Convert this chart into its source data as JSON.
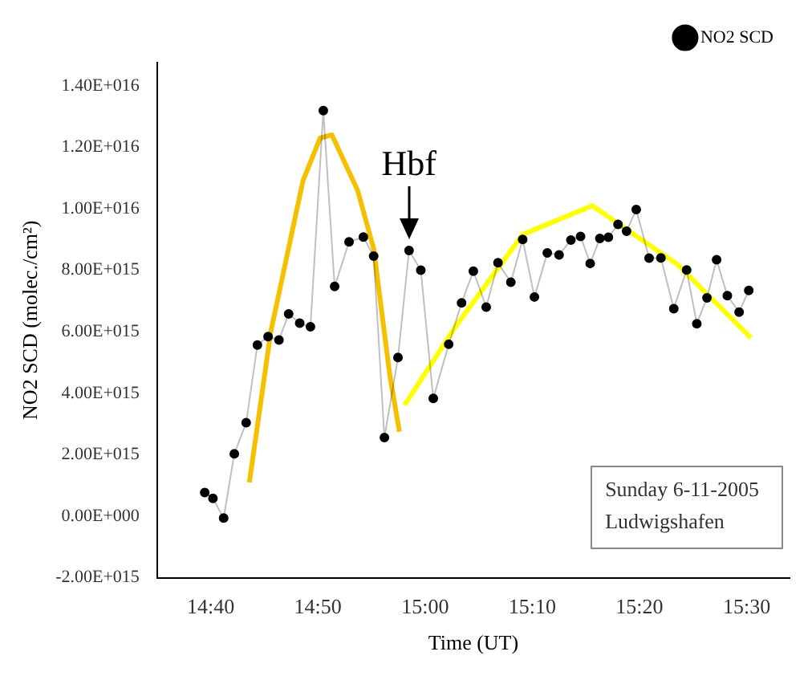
{
  "chart_data": {
    "type": "line",
    "xlabel": "Time (UT)",
    "ylabel": "NO2 SCD (molec./cm²)",
    "xlim": [
      14.5833,
      15.5667
    ],
    "ylim": [
      -2000000000000000.0,
      1.475e+16
    ],
    "xticks": [
      {
        "value": 14.6667,
        "label": "14:40"
      },
      {
        "value": 14.8333,
        "label": "14:50"
      },
      {
        "value": 15,
        "label": "15:00"
      },
      {
        "value": 15.1667,
        "label": "15:10"
      },
      {
        "value": 15.3333,
        "label": "15:20"
      },
      {
        "value": 15.5,
        "label": "15:30"
      }
    ],
    "yticks": [
      {
        "value": -2000000000000000.0,
        "label": "-2.00E+015"
      },
      {
        "value": 0,
        "label": "0.00E+000"
      },
      {
        "value": 2000000000000000.0,
        "label": "2.00E+015"
      },
      {
        "value": 4000000000000000.0,
        "label": "4.00E+015"
      },
      {
        "value": 6000000000000000.0,
        "label": "6.00E+015"
      },
      {
        "value": 8000000000000000.0,
        "label": "8.00E+015"
      },
      {
        "value": 1e+16,
        "label": "1.00E+016"
      },
      {
        "value": 1.2e+16,
        "label": "1.20E+016"
      },
      {
        "value": 1.4e+16,
        "label": "1.40E+016"
      }
    ],
    "grid": false,
    "legend": "top right",
    "marker": "circle",
    "annotations": [
      {
        "text": "Hbf",
        "x": 14.975,
        "y": 8640000000000000.0
      },
      "Sunday 6-11-2005",
      "Ludwigshafen"
    ],
    "series": [
      {
        "name": "NO2 SCD",
        "color": "#000000",
        "x": [
          14.6573,
          14.67,
          14.6867,
          14.7033,
          14.7217,
          14.7392,
          14.7558,
          14.7727,
          14.7878,
          14.805,
          14.8217,
          14.8417,
          14.8593,
          14.8817,
          14.904,
          14.92,
          14.9367,
          14.9578,
          14.975,
          14.9933,
          15.0127,
          15.0367,
          15.0567,
          15.075,
          15.095,
          15.1133,
          15.1333,
          15.1517,
          15.17,
          15.19,
          15.2083,
          15.2267,
          15.2417,
          15.2567,
          15.2717,
          15.285,
          15.3,
          15.3133,
          15.3283,
          15.3483,
          15.3667,
          15.3867,
          15.4067,
          15.4225,
          15.4383,
          15.4533,
          15.47,
          15.4883,
          15.5033
        ],
        "values": [
          770000000000000.0,
          580000000000000.0,
          -60000000000000.0,
          2030000000000000.0,
          3040000000000000.0,
          5570000000000000.0,
          5840000000000000.0,
          5730000000000000.0,
          6580000000000000.0,
          6280000000000000.0,
          6160000000000000.0,
          1.319e+16,
          7470000000000000.0,
          8920000000000000.0,
          9080000000000000.0,
          8460000000000000.0,
          2560000000000000.0,
          5160000000000000.0,
          8640000000000000.0,
          8000000000000000.0,
          3830000000000000.0,
          5590000000000000.0,
          6940000000000000.0,
          7970000000000000.0,
          6800000000000000.0,
          8240000000000000.0,
          7610000000000000.0,
          9000000000000000.0,
          7130000000000000.0,
          8560000000000000.0,
          8500000000000000.0,
          8980000000000000.0,
          9100000000000000.0,
          8220000000000000.0,
          9030000000000000.0,
          9070000000000000.0,
          9490000000000000.0,
          9270000000000000.0,
          9970000000000000.0,
          8390000000000000.0,
          8400000000000000.0,
          6750000000000000.0,
          8010000000000000.0,
          6260000000000000.0,
          7100000000000000.0,
          8340000000000000.0,
          7170000000000000.0,
          6640000000000000.0,
          7340000000000000.0
        ]
      },
      {
        "type": "line",
        "marker": "none",
        "color": "#f5c000",
        "x": [
          14.7267,
          14.76,
          14.81,
          14.8367,
          14.855,
          14.895,
          14.92,
          14.945,
          14.96
        ],
        "values": [
          1100000000000000.0,
          6000000000000000.0,
          1.09e+16,
          1.23e+16,
          1.24e+16,
          1.06e+16,
          8700000000000000.0,
          4600000000000000.0,
          2750000000000000.0
        ]
      },
      {
        "type": "line",
        "marker": "none",
        "color": "#ffff00",
        "x": [
          14.9683,
          15.0467,
          15.1517,
          15.26,
          15.3917,
          15.5067
        ],
        "values": [
          3620000000000000.0,
          6150000000000000.0,
          9160000000000000.0,
          1.01e+16,
          8200000000000000.0,
          5800000000000000.0
        ]
      }
    ]
  }
}
